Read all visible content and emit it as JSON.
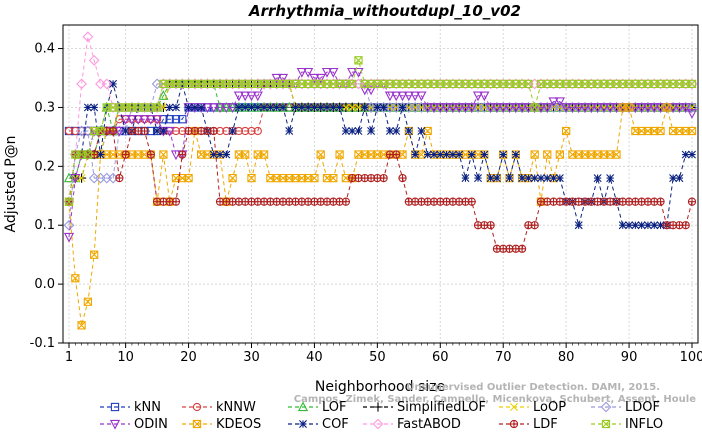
{
  "chart_data": {
    "type": "line",
    "title": "Arrhythmia_withoutdupl_10_v02",
    "xlabel": "Neighborhood size",
    "ylabel": "Adjusted P@n",
    "xlim": [
      1,
      100
    ],
    "ylim": [
      -0.1,
      0.44
    ],
    "xticks": [
      1,
      10,
      20,
      30,
      40,
      50,
      60,
      70,
      80,
      90,
      100
    ],
    "yticks": [
      -0.1,
      0.0,
      0.1,
      0.2,
      0.3,
      0.4
    ],
    "grid": true,
    "legend_position": "bottom",
    "watermark": [
      "Campos, Zimek, Sander, Campello, Micenkova, Schubert, Assent, Houle",
      "Unsupervised Outlier Detection. DAMI, 2015."
    ],
    "series": [
      {
        "name": "kNN",
        "color": "#1f3fbf",
        "marker": "square",
        "points": [
          [
            1,
            0.26
          ],
          [
            15,
            0.26
          ],
          [
            16,
            0.28
          ],
          [
            20,
            0.3
          ],
          [
            100,
            0.3
          ]
        ]
      },
      {
        "name": "kNNW",
        "color": "#d94040",
        "marker": "circle",
        "points": [
          [
            1,
            0.26
          ],
          [
            8,
            0.26
          ],
          [
            9,
            0.28
          ],
          [
            15,
            0.28
          ],
          [
            16,
            0.26
          ],
          [
            31,
            0.26
          ],
          [
            32,
            0.3
          ],
          [
            100,
            0.3
          ]
        ]
      },
      {
        "name": "LOF",
        "color": "#33bb33",
        "marker": "triangle-up",
        "points": [
          [
            1,
            0.18
          ],
          [
            2,
            0.18
          ],
          [
            3,
            0.22
          ],
          [
            6,
            0.26
          ],
          [
            7,
            0.3
          ],
          [
            8,
            0.26
          ],
          [
            9,
            0.3
          ],
          [
            14,
            0.3
          ],
          [
            16,
            0.32
          ],
          [
            17,
            0.34
          ],
          [
            22,
            0.34
          ],
          [
            25,
            0.3
          ],
          [
            100,
            0.3
          ]
        ]
      },
      {
        "name": "SimplifiedLOF",
        "color": "#000000",
        "marker": "plus",
        "points": [
          [
            1,
            0.14
          ],
          [
            2,
            0.18
          ],
          [
            3,
            0.18
          ],
          [
            4,
            0.22
          ],
          [
            7,
            0.26
          ],
          [
            9,
            0.3
          ],
          [
            15,
            0.3
          ],
          [
            17,
            0.34
          ],
          [
            36,
            0.34
          ],
          [
            37,
            0.3
          ],
          [
            100,
            0.3
          ]
        ]
      },
      {
        "name": "LoOP",
        "color": "#e8d000",
        "marker": "cross",
        "points": [
          [
            1,
            0.14
          ],
          [
            2,
            0.18
          ],
          [
            4,
            0.22
          ],
          [
            7,
            0.26
          ],
          [
            9,
            0.3
          ],
          [
            15,
            0.3
          ],
          [
            17,
            0.34
          ],
          [
            36,
            0.34
          ],
          [
            37,
            0.3
          ],
          [
            100,
            0.3
          ]
        ]
      },
      {
        "name": "LDOF",
        "color": "#9999dd",
        "marker": "diamond",
        "points": [
          [
            1,
            0.1
          ],
          [
            2,
            0.22
          ],
          [
            3,
            0.26
          ],
          [
            5,
            0.18
          ],
          [
            8,
            0.18
          ],
          [
            9,
            0.26
          ],
          [
            11,
            0.3
          ],
          [
            15,
            0.34
          ],
          [
            30,
            0.34
          ],
          [
            32,
            0.34
          ],
          [
            48,
            0.34
          ],
          [
            49,
            0.3
          ],
          [
            100,
            0.3
          ]
        ]
      },
      {
        "name": "ODIN",
        "color": "#9933cc",
        "marker": "triangle-down",
        "points": [
          [
            1,
            0.08
          ],
          [
            2,
            0.18
          ],
          [
            3,
            0.22
          ],
          [
            5,
            0.26
          ],
          [
            8,
            0.26
          ],
          [
            10,
            0.28
          ],
          [
            14,
            0.28
          ],
          [
            16,
            0.26
          ],
          [
            18,
            0.22
          ],
          [
            20,
            0.3
          ],
          [
            26,
            0.3
          ],
          [
            28,
            0.32
          ],
          [
            32,
            0.34
          ],
          [
            34,
            0.35
          ],
          [
            36,
            0.34
          ],
          [
            38,
            0.36
          ],
          [
            40,
            0.35
          ],
          [
            42,
            0.36
          ],
          [
            44,
            0.34
          ],
          [
            46,
            0.36
          ],
          [
            48,
            0.33
          ],
          [
            50,
            0.34
          ],
          [
            52,
            0.32
          ],
          [
            56,
            0.32
          ],
          [
            58,
            0.3
          ],
          [
            64,
            0.3
          ],
          [
            66,
            0.32
          ],
          [
            68,
            0.3
          ],
          [
            76,
            0.3
          ],
          [
            78,
            0.31
          ],
          [
            80,
            0.3
          ],
          [
            99,
            0.3
          ],
          [
            100,
            0.29
          ]
        ]
      },
      {
        "name": "KDEOS",
        "color": "#f0a800",
        "marker": "square-x",
        "points": [
          [
            1,
            0.14
          ],
          [
            2,
            0.01
          ],
          [
            3,
            -0.07
          ],
          [
            4,
            -0.03
          ],
          [
            5,
            0.05
          ],
          [
            6,
            0.22
          ],
          [
            9,
            0.22
          ],
          [
            10,
            0.22
          ],
          [
            14,
            0.22
          ],
          [
            15,
            0.14
          ],
          [
            16,
            0.22
          ],
          [
            17,
            0.14
          ],
          [
            18,
            0.18
          ],
          [
            20,
            0.18
          ],
          [
            21,
            0.26
          ],
          [
            22,
            0.22
          ],
          [
            25,
            0.22
          ],
          [
            26,
            0.14
          ],
          [
            27,
            0.18
          ],
          [
            28,
            0.22
          ],
          [
            30,
            0.18
          ],
          [
            31,
            0.22
          ],
          [
            32,
            0.22
          ],
          [
            33,
            0.18
          ],
          [
            40,
            0.18
          ],
          [
            41,
            0.22
          ],
          [
            42,
            0.18
          ],
          [
            44,
            0.22
          ],
          [
            45,
            0.18
          ],
          [
            47,
            0.22
          ],
          [
            54,
            0.22
          ],
          [
            55,
            0.26
          ],
          [
            56,
            0.22
          ],
          [
            58,
            0.26
          ],
          [
            59,
            0.22
          ],
          [
            67,
            0.22
          ],
          [
            68,
            0.18
          ],
          [
            70,
            0.22
          ],
          [
            71,
            0.18
          ],
          [
            72,
            0.22
          ],
          [
            73,
            0.18
          ],
          [
            75,
            0.22
          ],
          [
            76,
            0.14
          ],
          [
            77,
            0.22
          ],
          [
            78,
            0.18
          ],
          [
            79,
            0.22
          ],
          [
            80,
            0.26
          ],
          [
            81,
            0.22
          ],
          [
            88,
            0.22
          ],
          [
            89,
            0.3
          ],
          [
            90,
            0.3
          ],
          [
            91,
            0.26
          ],
          [
            95,
            0.26
          ],
          [
            96,
            0.3
          ],
          [
            97,
            0.26
          ],
          [
            100,
            0.26
          ]
        ]
      },
      {
        "name": "COF",
        "color": "#0a2080",
        "marker": "asterisk",
        "points": [
          [
            1,
            0.14
          ],
          [
            2,
            0.22
          ],
          [
            3,
            0.22
          ],
          [
            4,
            0.3
          ],
          [
            5,
            0.3
          ],
          [
            6,
            0.22
          ],
          [
            7,
            0.3
          ],
          [
            8,
            0.34
          ],
          [
            9,
            0.3
          ],
          [
            10,
            0.26
          ],
          [
            12,
            0.3
          ],
          [
            15,
            0.26
          ],
          [
            17,
            0.3
          ],
          [
            19,
            0.34
          ],
          [
            20,
            0.3
          ],
          [
            23,
            0.26
          ],
          [
            24,
            0.22
          ],
          [
            26,
            0.22
          ],
          [
            27,
            0.26
          ],
          [
            28,
            0.3
          ],
          [
            34,
            0.3
          ],
          [
            35,
            0.3
          ],
          [
            36,
            0.26
          ],
          [
            37,
            0.3
          ],
          [
            44,
            0.3
          ],
          [
            45,
            0.26
          ],
          [
            47,
            0.26
          ],
          [
            48,
            0.3
          ],
          [
            49,
            0.26
          ],
          [
            50,
            0.3
          ],
          [
            52,
            0.26
          ],
          [
            54,
            0.3
          ],
          [
            55,
            0.26
          ],
          [
            56,
            0.22
          ],
          [
            57,
            0.26
          ],
          [
            58,
            0.22
          ],
          [
            63,
            0.22
          ],
          [
            64,
            0.18
          ],
          [
            65,
            0.22
          ],
          [
            66,
            0.18
          ],
          [
            67,
            0.22
          ],
          [
            68,
            0.18
          ],
          [
            70,
            0.22
          ],
          [
            71,
            0.18
          ],
          [
            72,
            0.22
          ],
          [
            73,
            0.18
          ],
          [
            78,
            0.18
          ],
          [
            80,
            0.14
          ],
          [
            81,
            0.14
          ],
          [
            82,
            0.1
          ],
          [
            83,
            0.14
          ],
          [
            85,
            0.18
          ],
          [
            86,
            0.14
          ],
          [
            87,
            0.18
          ],
          [
            88,
            0.14
          ],
          [
            89,
            0.1
          ],
          [
            96,
            0.1
          ],
          [
            97,
            0.18
          ],
          [
            98,
            0.18
          ],
          [
            99,
            0.22
          ],
          [
            100,
            0.22
          ]
        ]
      },
      {
        "name": "FastABOD",
        "color": "#ff99dd",
        "marker": "diamond",
        "points": [
          [
            1,
            0.14
          ],
          [
            2,
            0.22
          ],
          [
            3,
            0.34
          ],
          [
            4,
            0.42
          ],
          [
            5,
            0.38
          ],
          [
            6,
            0.34
          ],
          [
            7,
            0.34
          ],
          [
            8,
            0.3
          ],
          [
            9,
            0.3
          ],
          [
            15,
            0.3
          ],
          [
            16,
            0.34
          ],
          [
            70,
            0.34
          ],
          [
            71,
            0.34
          ],
          [
            100,
            0.34
          ]
        ]
      },
      {
        "name": "LDF",
        "color": "#b02020",
        "marker": "circle-plus",
        "points": [
          [
            1,
            0.14
          ],
          [
            2,
            0.22
          ],
          [
            4,
            0.22
          ],
          [
            6,
            0.26
          ],
          [
            8,
            0.26
          ],
          [
            9,
            0.18
          ],
          [
            10,
            0.22
          ],
          [
            11,
            0.26
          ],
          [
            13,
            0.26
          ],
          [
            14,
            0.22
          ],
          [
            15,
            0.14
          ],
          [
            18,
            0.14
          ],
          [
            19,
            0.22
          ],
          [
            20,
            0.26
          ],
          [
            23,
            0.26
          ],
          [
            25,
            0.14
          ],
          [
            45,
            0.14
          ],
          [
            46,
            0.18
          ],
          [
            51,
            0.18
          ],
          [
            52,
            0.22
          ],
          [
            54,
            0.18
          ],
          [
            55,
            0.14
          ],
          [
            65,
            0.14
          ],
          [
            66,
            0.1
          ],
          [
            68,
            0.1
          ],
          [
            69,
            0.06
          ],
          [
            73,
            0.06
          ],
          [
            74,
            0.1
          ],
          [
            76,
            0.14
          ],
          [
            95,
            0.14
          ],
          [
            96,
            0.1
          ],
          [
            99,
            0.1
          ],
          [
            100,
            0.14
          ]
        ]
      },
      {
        "name": "INFLO",
        "color": "#99cc22",
        "marker": "square-x",
        "points": [
          [
            1,
            0.14
          ],
          [
            2,
            0.22
          ],
          [
            4,
            0.22
          ],
          [
            5,
            0.26
          ],
          [
            7,
            0.3
          ],
          [
            15,
            0.3
          ],
          [
            16,
            0.34
          ],
          [
            40,
            0.34
          ],
          [
            42,
            0.34
          ],
          [
            46,
            0.34
          ],
          [
            47,
            0.38
          ],
          [
            48,
            0.34
          ],
          [
            74,
            0.34
          ],
          [
            75,
            0.3
          ],
          [
            76,
            0.34
          ],
          [
            100,
            0.34
          ]
        ]
      }
    ]
  }
}
